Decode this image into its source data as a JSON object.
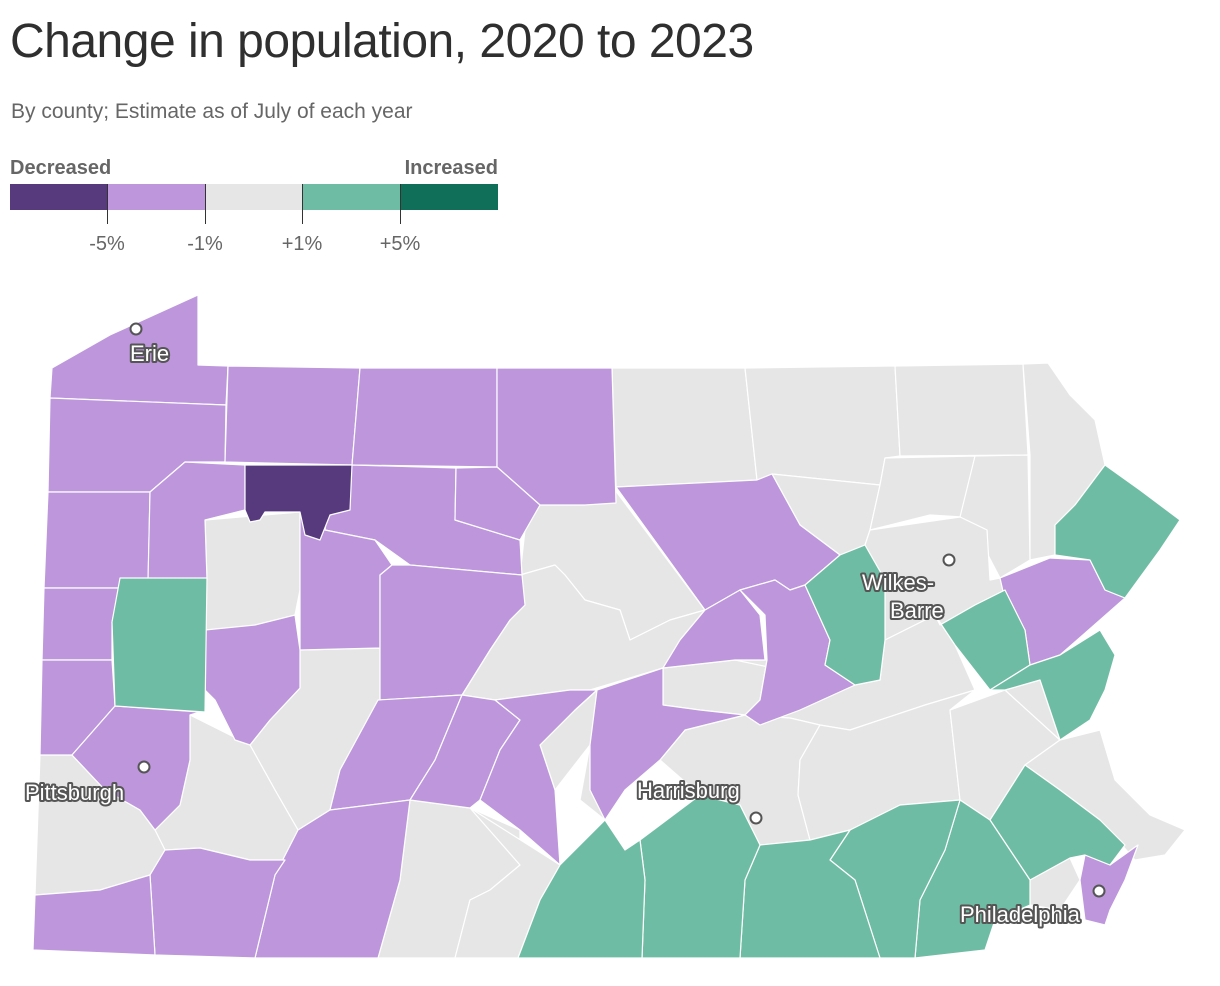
{
  "title": "Change in population, 2020 to 2023",
  "subtitle": "By county; Estimate as of July of each year",
  "legend": {
    "low_label": "Decreased",
    "high_label": "Increased",
    "bins": [
      {
        "range": "below -5%",
        "color": "#573a7d"
      },
      {
        "range": "-5% to -1%",
        "color": "#bd96dc"
      },
      {
        "range": "-1% to +1%",
        "color": "#e6e6e6"
      },
      {
        "range": "+1% to +5%",
        "color": "#6fbca4"
      },
      {
        "range": "above +5%",
        "color": "#0f6f58"
      }
    ],
    "ticks": [
      "-5%",
      "-1%",
      "+1%",
      "+5%"
    ]
  },
  "colors": {
    "decrease_strong": "#573a7d",
    "decrease": "#bd96dc",
    "stable": "#e6e6e6",
    "increase": "#6fbca4",
    "increase_strong": "#0f6f58",
    "border": "#ffffff"
  },
  "map": {
    "region": "Pennsylvania counties",
    "cities": [
      {
        "name": "Erie",
        "label": "Erie"
      },
      {
        "name": "Wilkes-Barre",
        "label_line1": "Wilkes-",
        "label_line2": "Barre"
      },
      {
        "name": "Pittsburgh",
        "label": "Pittsburgh"
      },
      {
        "name": "Harrisburg",
        "label": "Harrisburg"
      },
      {
        "name": "Philadelphia",
        "label": "Philadelphia"
      }
    ]
  }
}
